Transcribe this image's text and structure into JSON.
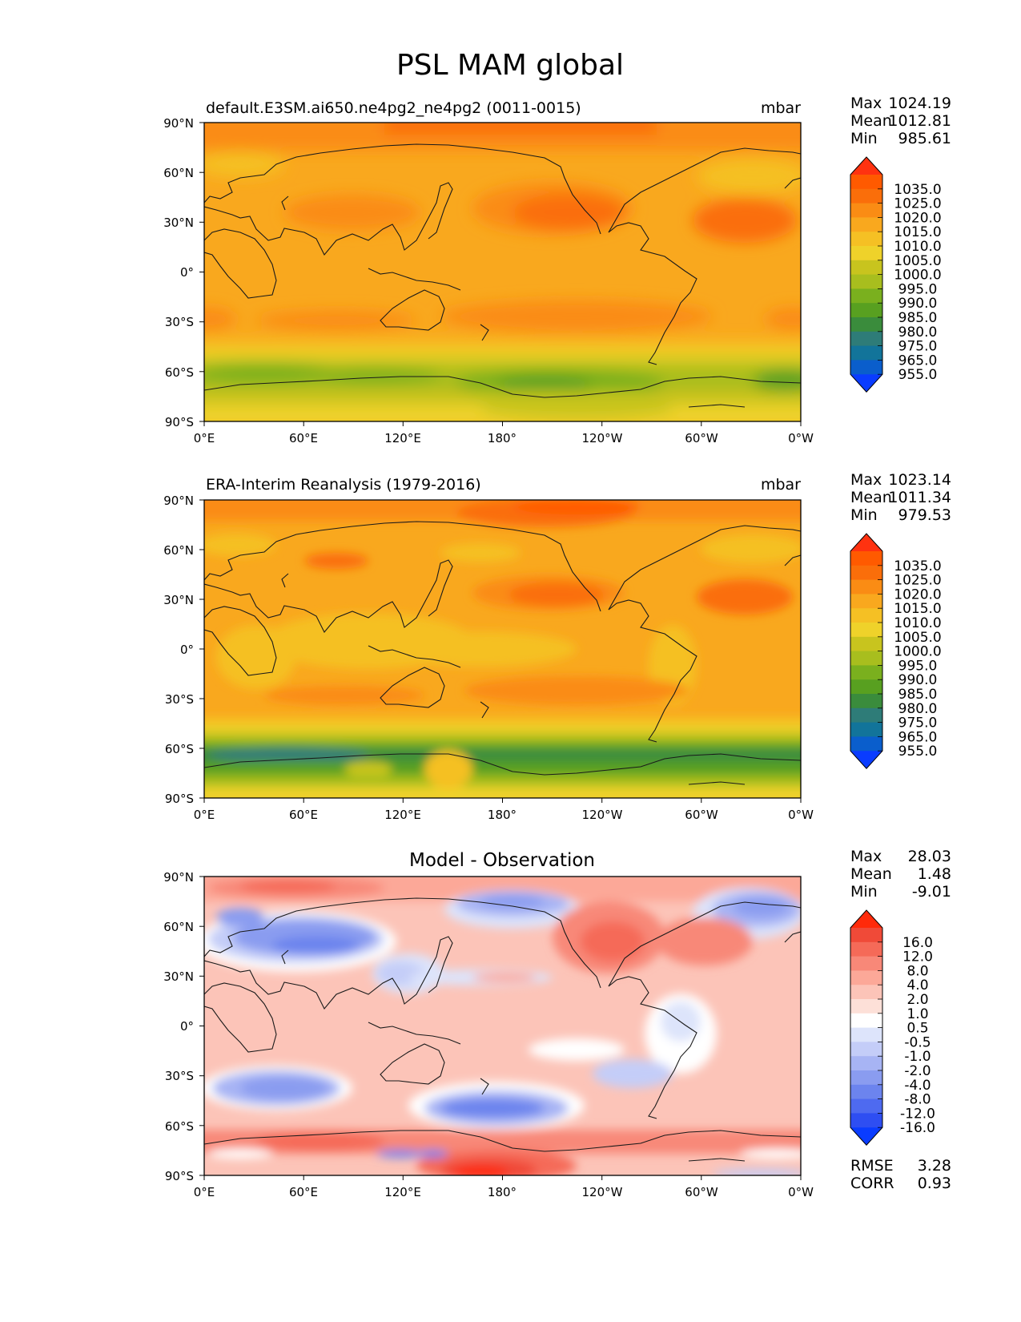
{
  "figure_title": "PSL MAM global",
  "lon_ticks": [
    "0°E",
    "60°E",
    "120°E",
    "180°",
    "120°W",
    "60°W",
    "0°W"
  ],
  "lat_ticks": [
    "90°N",
    "60°N",
    "30°N",
    "0°",
    "30°S",
    "60°S",
    "90°S"
  ],
  "stats_labels": {
    "max": "Max",
    "mean": "Mean",
    "min": "Min",
    "rmse": "RMSE",
    "corr": "CORR"
  },
  "panels": [
    {
      "id": "test",
      "title": "default.E3SM.ai650.ne4pg2_ne4pg2 (0011-0015)",
      "units": "mbar",
      "stats": {
        "max": "1024.19",
        "mean": "1012.81",
        "min": "985.61"
      },
      "colorbar_labels": [
        "1035.0",
        "1025.0",
        "1020.0",
        "1015.0",
        "1010.0",
        "1005.0",
        "1000.0",
        "995.0",
        "990.0",
        "985.0",
        "980.0",
        "975.0",
        "965.0",
        "955.0"
      ],
      "colors": [
        "#ff3210",
        "#ff5a00",
        "#fa6e0a",
        "#fa8c14",
        "#f9a81e",
        "#f5c024",
        "#efd22a",
        "#c8c41e",
        "#a8be1e",
        "#7ab01e",
        "#58a020",
        "#3a8c3c",
        "#2e7c78",
        "#12749a",
        "#0a5ecc",
        "#0a3cff"
      ]
    },
    {
      "id": "reference",
      "title": "ERA-Interim Reanalysis (1979-2016)",
      "units": "mbar",
      "stats": {
        "max": "1023.14",
        "mean": "1011.34",
        "min": "979.53"
      },
      "colorbar_labels": [
        "1035.0",
        "1025.0",
        "1020.0",
        "1015.0",
        "1010.0",
        "1005.0",
        "1000.0",
        "995.0",
        "990.0",
        "985.0",
        "980.0",
        "975.0",
        "965.0",
        "955.0"
      ],
      "colors": [
        "#ff3210",
        "#ff5a00",
        "#fa6e0a",
        "#fa8c14",
        "#f9a81e",
        "#f5c024",
        "#efd22a",
        "#c8c41e",
        "#a8be1e",
        "#7ab01e",
        "#58a020",
        "#3a8c3c",
        "#2e7c78",
        "#12749a",
        "#0a5ecc",
        "#0a3cff"
      ]
    },
    {
      "id": "difference",
      "title": "Model - Observation",
      "units": "",
      "stats": {
        "max": "28.03",
        "mean": "1.48",
        "min": "-9.01",
        "rmse": "3.28",
        "corr": "0.93"
      },
      "colorbar_labels": [
        "16.0",
        "12.0",
        "8.0",
        "4.0",
        "2.0",
        "1.0",
        "0.5",
        "-0.5",
        "-1.0",
        "-2.0",
        "-4.0",
        "-8.0",
        "-12.0",
        "-16.0"
      ],
      "colors": [
        "#ff2a0a",
        "#f04a38",
        "#f56a58",
        "#f88878",
        "#fca898",
        "#fcc4b8",
        "#fde0d8",
        "#ffffff",
        "#dde4fb",
        "#c4cdf8",
        "#a7b4f4",
        "#8a9cf0",
        "#6c84ee",
        "#4e6af0",
        "#2e4ef2",
        "#0a3cff"
      ]
    }
  ]
}
